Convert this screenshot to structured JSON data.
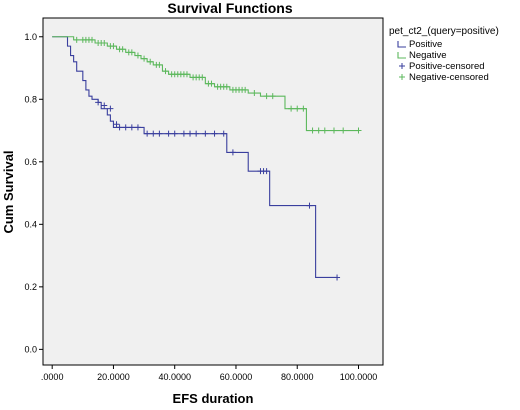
{
  "chart_data": {
    "type": "line",
    "title": "Survival Functions",
    "xlabel": "EFS duration",
    "ylabel": "Cum Survival",
    "xlim": [
      -3,
      108
    ],
    "ylim": [
      -0.05,
      1.06
    ],
    "x_ticks": [
      {
        "value": 0,
        "label": ".0000"
      },
      {
        "value": 20,
        "label": "20.0000"
      },
      {
        "value": 40,
        "label": "40.0000"
      },
      {
        "value": 60,
        "label": "60.0000"
      },
      {
        "value": 80,
        "label": "80.0000"
      },
      {
        "value": 100,
        "label": "100.0000"
      }
    ],
    "y_ticks": [
      {
        "value": 0.0,
        "label": "0.0"
      },
      {
        "value": 0.2,
        "label": "0.2"
      },
      {
        "value": 0.4,
        "label": "0.4"
      },
      {
        "value": 0.6,
        "label": "0.6"
      },
      {
        "value": 0.8,
        "label": "0.8"
      },
      {
        "value": 1.0,
        "label": "1.0"
      }
    ],
    "plot_background": "#f0f0f0",
    "grid": false,
    "legend_title": "pet_ct2_(query=positive)",
    "legend_placement": "right-top",
    "series": [
      {
        "name": "Positive",
        "censored_name": "Positive-censored",
        "color": "#3a3f9e",
        "steps": [
          [
            0,
            1.0
          ],
          [
            5,
            0.97
          ],
          [
            6,
            0.94
          ],
          [
            7,
            0.92
          ],
          [
            8,
            0.89
          ],
          [
            10,
            0.86
          ],
          [
            11,
            0.83
          ],
          [
            12,
            0.81
          ],
          [
            13,
            0.8
          ],
          [
            15,
            0.79
          ],
          [
            16,
            0.77
          ],
          [
            18,
            0.75
          ],
          [
            19,
            0.73
          ],
          [
            20,
            0.71
          ],
          [
            30,
            0.69
          ],
          [
            57,
            0.63
          ],
          [
            64,
            0.57
          ],
          [
            71,
            0.46
          ],
          [
            86,
            0.23
          ],
          [
            93,
            0.23
          ]
        ],
        "censored": [
          [
            15,
            0.79
          ],
          [
            17,
            0.78
          ],
          [
            19,
            0.77
          ],
          [
            21,
            0.72
          ],
          [
            22,
            0.71
          ],
          [
            24,
            0.71
          ],
          [
            26,
            0.71
          ],
          [
            28,
            0.71
          ],
          [
            31,
            0.69
          ],
          [
            33,
            0.69
          ],
          [
            35,
            0.69
          ],
          [
            38,
            0.69
          ],
          [
            40,
            0.69
          ],
          [
            43,
            0.69
          ],
          [
            45,
            0.69
          ],
          [
            47,
            0.69
          ],
          [
            50,
            0.69
          ],
          [
            53,
            0.69
          ],
          [
            56,
            0.69
          ],
          [
            59,
            0.63
          ],
          [
            68,
            0.57
          ],
          [
            69,
            0.57
          ],
          [
            70,
            0.57
          ],
          [
            84,
            0.46
          ],
          [
            93,
            0.23
          ]
        ]
      },
      {
        "name": "Negative",
        "censored_name": "Negative-censored",
        "color": "#5cb85c",
        "steps": [
          [
            0,
            1.0
          ],
          [
            7,
            0.99
          ],
          [
            14,
            0.98
          ],
          [
            18,
            0.97
          ],
          [
            21,
            0.96
          ],
          [
            24,
            0.95
          ],
          [
            27,
            0.94
          ],
          [
            29,
            0.93
          ],
          [
            31,
            0.92
          ],
          [
            33,
            0.91
          ],
          [
            36,
            0.89
          ],
          [
            38,
            0.88
          ],
          [
            45,
            0.87
          ],
          [
            50,
            0.85
          ],
          [
            53,
            0.84
          ],
          [
            58,
            0.83
          ],
          [
            64,
            0.82
          ],
          [
            68,
            0.81
          ],
          [
            76,
            0.77
          ],
          [
            83,
            0.7
          ],
          [
            100,
            0.7
          ]
        ],
        "censored": [
          [
            8,
            0.99
          ],
          [
            10,
            0.99
          ],
          [
            11,
            0.99
          ],
          [
            12,
            0.99
          ],
          [
            13,
            0.99
          ],
          [
            15,
            0.98
          ],
          [
            16,
            0.98
          ],
          [
            17,
            0.98
          ],
          [
            19,
            0.97
          ],
          [
            20,
            0.97
          ],
          [
            22,
            0.96
          ],
          [
            23,
            0.96
          ],
          [
            25,
            0.95
          ],
          [
            26,
            0.95
          ],
          [
            28,
            0.94
          ],
          [
            30,
            0.93
          ],
          [
            32,
            0.92
          ],
          [
            34,
            0.91
          ],
          [
            35,
            0.91
          ],
          [
            37,
            0.89
          ],
          [
            39,
            0.88
          ],
          [
            40,
            0.88
          ],
          [
            41,
            0.88
          ],
          [
            42,
            0.88
          ],
          [
            43,
            0.88
          ],
          [
            44,
            0.88
          ],
          [
            46,
            0.87
          ],
          [
            47,
            0.87
          ],
          [
            48,
            0.87
          ],
          [
            49,
            0.87
          ],
          [
            51,
            0.85
          ],
          [
            52,
            0.85
          ],
          [
            54,
            0.84
          ],
          [
            55,
            0.84
          ],
          [
            56,
            0.84
          ],
          [
            57,
            0.84
          ],
          [
            59,
            0.83
          ],
          [
            60,
            0.83
          ],
          [
            61,
            0.83
          ],
          [
            62,
            0.83
          ],
          [
            63,
            0.83
          ],
          [
            66,
            0.82
          ],
          [
            70,
            0.81
          ],
          [
            72,
            0.81
          ],
          [
            78,
            0.77
          ],
          [
            80,
            0.77
          ],
          [
            82,
            0.77
          ],
          [
            85,
            0.7
          ],
          [
            87,
            0.7
          ],
          [
            89,
            0.7
          ],
          [
            92,
            0.7
          ],
          [
            95,
            0.7
          ],
          [
            100,
            0.7
          ]
        ]
      }
    ]
  }
}
